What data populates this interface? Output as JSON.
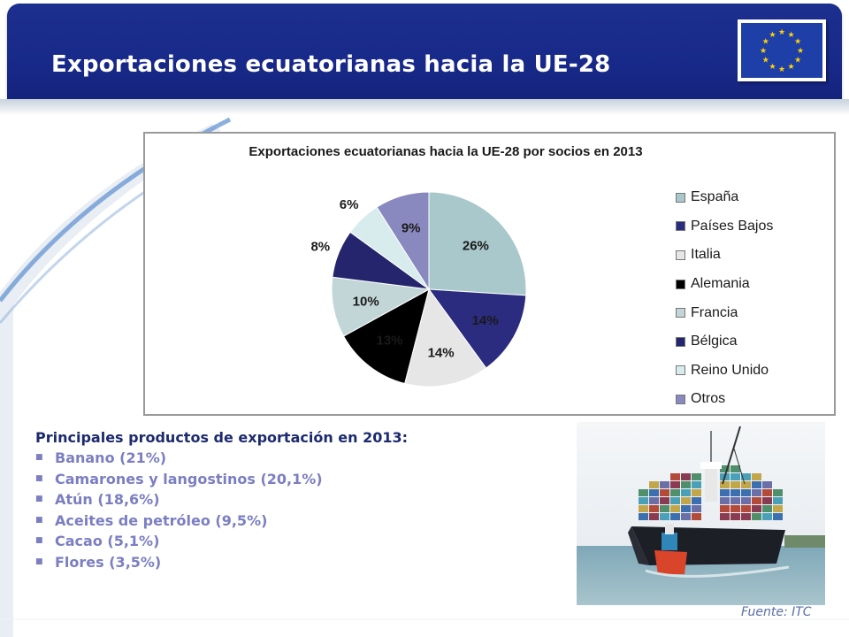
{
  "slide": {
    "title": "Exportaciones ecuatorianas hacia la UE-28",
    "flag_icon": "eu-flag-icon",
    "colors": {
      "header": "#1c2e8e",
      "bullets": "#7b7ec1",
      "products_title": "#1c2a6e"
    }
  },
  "chart_data": {
    "type": "pie",
    "title": "Exportaciones ecuatorianas hacia la UE-28 por socios en 2013",
    "categories": [
      "España",
      "Países Bajos",
      "Italia",
      "Alemania",
      "Francia",
      "Bélgica",
      "Reino Unido",
      "Otros"
    ],
    "values": [
      26,
      14,
      14,
      13,
      10,
      8,
      6,
      9
    ],
    "labels": [
      "26%",
      "14%",
      "14%",
      "13%",
      "10%",
      "8%",
      "6%",
      "9%"
    ],
    "colors": [
      "#a9c8cb",
      "#2b2b7f",
      "#e6e6e6",
      "#000000",
      "#c2d6d8",
      "#25256d",
      "#d8ecee",
      "#8a89bf"
    ],
    "legend_position": "right"
  },
  "products": {
    "title": "Principales productos de exportación en 2013:",
    "items": [
      "Banano (21%)",
      "Camarones y langostinos (20,1%)",
      "Atún (18,6%)",
      "Aceites de petróleo (9,5%)",
      "Cacao (5,1%)",
      "Flores (3,5%)"
    ],
    "bullet_icon": "square-bullet-icon"
  },
  "photo": {
    "subject": "container-ship-photo"
  },
  "source": "Fuente: ITC"
}
